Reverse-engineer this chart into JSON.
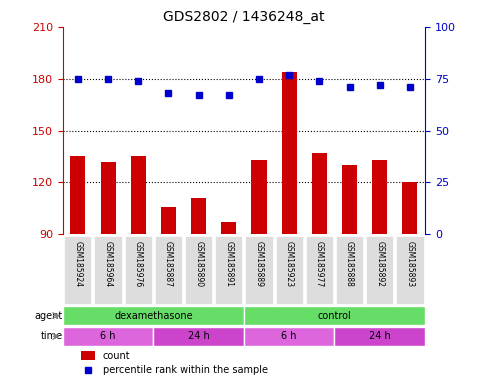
{
  "title": "GDS2802 / 1436248_at",
  "samples": [
    "GSM185924",
    "GSM185964",
    "GSM185976",
    "GSM185887",
    "GSM185890",
    "GSM185891",
    "GSM185889",
    "GSM185923",
    "GSM185977",
    "GSM185888",
    "GSM185892",
    "GSM185893"
  ],
  "counts": [
    135,
    132,
    135,
    106,
    111,
    97,
    133,
    184,
    137,
    130,
    133,
    120
  ],
  "percentile_ranks": [
    75,
    75,
    74,
    68,
    67,
    67,
    75,
    77,
    74,
    71,
    72,
    71
  ],
  "ylim_left": [
    90,
    210
  ],
  "ylim_right": [
    0,
    100
  ],
  "yticks_left": [
    90,
    120,
    150,
    180,
    210
  ],
  "yticks_right": [
    0,
    25,
    50,
    75,
    100
  ],
  "bar_color": "#cc0000",
  "dot_color": "#0000cc",
  "agent_groups": [
    {
      "label": "dexamethasone",
      "start": 0,
      "end": 6,
      "color": "#66dd66"
    },
    {
      "label": "control",
      "start": 6,
      "end": 12,
      "color": "#66dd66"
    }
  ],
  "time_groups": [
    {
      "label": "6 h",
      "start": 0,
      "end": 3,
      "color": "#dd66dd"
    },
    {
      "label": "24 h",
      "start": 3,
      "end": 6,
      "color": "#cc44cc"
    },
    {
      "label": "6 h",
      "start": 6,
      "end": 9,
      "color": "#dd66dd"
    },
    {
      "label": "24 h",
      "start": 9,
      "end": 12,
      "color": "#cc44cc"
    }
  ],
  "xlabel_agent": "agent",
  "xlabel_time": "time",
  "legend_count_label": "count",
  "legend_percentile_label": "percentile rank within the sample",
  "grid_color": "#000000",
  "background_color": "#ffffff",
  "tick_label_bg": "#dddddd"
}
